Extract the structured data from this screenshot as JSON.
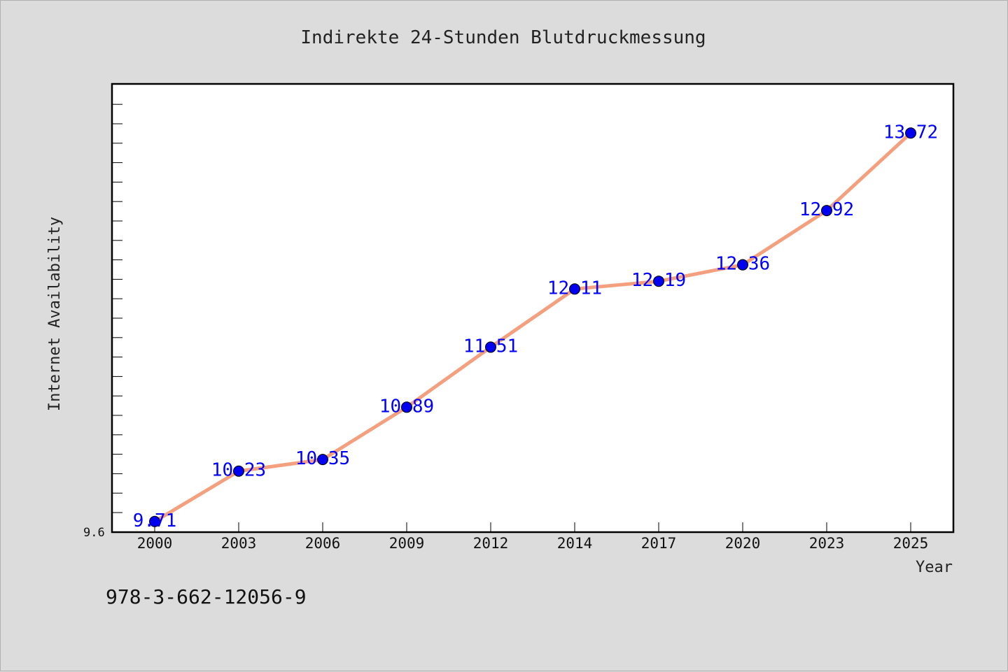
{
  "chart_data": {
    "type": "line",
    "title": "Indirekte 24-Stunden Blutdruckmessung",
    "xlabel": "Year",
    "ylabel": "Internet Availability",
    "categories": [
      "2000",
      "2003",
      "2006",
      "2009",
      "2012",
      "2014",
      "2017",
      "2020",
      "2023",
      "2025"
    ],
    "series": [
      {
        "values": [
          9.71,
          10.23,
          10.35,
          10.89,
          11.51,
          12.11,
          12.19,
          12.36,
          12.92,
          13.72
        ],
        "data_labels": [
          "9.71",
          "10.23",
          "10.35",
          "10.89",
          "11.51",
          "12.11",
          "12.19",
          "12.36",
          "12.92",
          "13.72"
        ],
        "line_color": "#f4a07e",
        "marker_color": "#0000ee",
        "label_color": "#0000ff"
      }
    ],
    "ylim": [
      9.6,
      14.22
    ],
    "y_min_label": "9.6",
    "grid": false,
    "legend": "none"
  },
  "footer": {
    "isbn": "978-3-662-12056-9"
  },
  "colors": {
    "background": "#dcdcdc",
    "plot_background": "#ffffff",
    "axis": "#000000"
  }
}
